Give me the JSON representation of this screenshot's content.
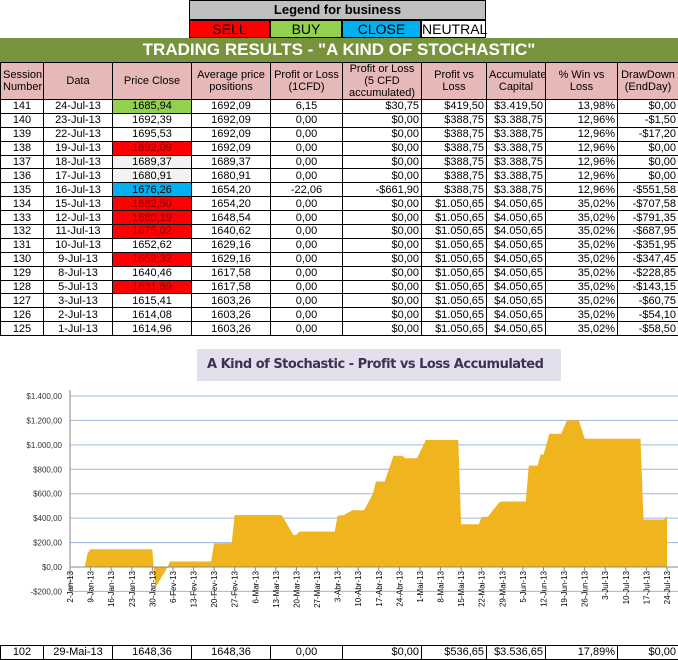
{
  "legend": {
    "title": "Legend for business",
    "items": [
      {
        "label": "SELL",
        "color": "#ff0000"
      },
      {
        "label": "BUY",
        "color": "#92d050"
      },
      {
        "label": "CLOSE",
        "color": "#00b0f0"
      },
      {
        "label": "NEUTRAL",
        "color": "#ffffff"
      }
    ]
  },
  "title": "TRADING RESULTS - \"A KIND OF STOCHASTIC\"",
  "table": {
    "headers": [
      "Session Number",
      "Data",
      "Price Close",
      "Average price positions",
      "Profit or Loss (1CFD)",
      "Profit or Loss (5 CFD accumulated)",
      "Profit vs Loss",
      "Accumulated Capital",
      "% Win vs Loss",
      "DrawDown (EndDay)"
    ],
    "rows": [
      {
        "cells": [
          "141",
          "24-Jul-13",
          "1685,94",
          "1692,09",
          "6,15",
          "$30,75",
          "$419,50",
          "$3.419,50",
          "13,98%",
          "$0,00"
        ],
        "signal": "BUY"
      },
      {
        "cells": [
          "140",
          "23-Jul-13",
          "1692,39",
          "1692,09",
          "0,00",
          "$0,00",
          "$388,75",
          "$3.388,75",
          "12,96%",
          "-$1,50"
        ],
        "signal": ""
      },
      {
        "cells": [
          "139",
          "22-Jul-13",
          "1695,53",
          "1692,09",
          "0,00",
          "$0,00",
          "$388,75",
          "$3.388,75",
          "12,96%",
          "-$17,20"
        ],
        "signal": ""
      },
      {
        "cells": [
          "138",
          "19-Jul-13",
          "1692,09",
          "1692,09",
          "0,00",
          "$0,00",
          "$388,75",
          "$3.388,75",
          "12,96%",
          "$0,00"
        ],
        "signal": "SELL"
      },
      {
        "cells": [
          "137",
          "18-Jul-13",
          "1689,37",
          "1689,37",
          "0,00",
          "$0,00",
          "$388,75",
          "$3.388,75",
          "12,96%",
          "$0,00"
        ],
        "signal": "NEUTRAL"
      },
      {
        "cells": [
          "136",
          "17-Jul-13",
          "1680,91",
          "1680,91",
          "0,00",
          "$0,00",
          "$388,75",
          "$3.388,75",
          "12,96%",
          "$0,00"
        ],
        "signal": "NEUTRAL"
      },
      {
        "cells": [
          "135",
          "16-Jul-13",
          "1676,26",
          "1654,20",
          "-22,06",
          "-$661,90",
          "$388,75",
          "$3.388,75",
          "12,96%",
          "-$551,58"
        ],
        "signal": "CLOSE"
      },
      {
        "cells": [
          "134",
          "15-Jul-13",
          "1682,50",
          "1654,20",
          "0,00",
          "$0,00",
          "$1.050,65",
          "$4.050,65",
          "35,02%",
          "-$707,58"
        ],
        "signal": "SELL"
      },
      {
        "cells": [
          "133",
          "12-Jul-13",
          "1680,19",
          "1648,54",
          "0,00",
          "$0,00",
          "$1.050,65",
          "$4.050,65",
          "35,02%",
          "-$791,35"
        ],
        "signal": "SELL"
      },
      {
        "cells": [
          "132",
          "11-Jul-13",
          "1675,02",
          "1640,62",
          "0,00",
          "$0,00",
          "$1.050,65",
          "$4.050,65",
          "35,02%",
          "-$687,95"
        ],
        "signal": "SELL"
      },
      {
        "cells": [
          "131",
          "10-Jul-13",
          "1652,62",
          "1629,16",
          "0,00",
          "$0,00",
          "$1.050,65",
          "$4.050,65",
          "35,02%",
          "-$351,95"
        ],
        "signal": ""
      },
      {
        "cells": [
          "130",
          "9-Jul-13",
          "1652,32",
          "1629,16",
          "0,00",
          "$0,00",
          "$1.050,65",
          "$4.050,65",
          "35,02%",
          "-$347,45"
        ],
        "signal": "SELL"
      },
      {
        "cells": [
          "129",
          "8-Jul-13",
          "1640,46",
          "1617,58",
          "0,00",
          "$0,00",
          "$1.050,65",
          "$4.050,65",
          "35,02%",
          "-$228,85"
        ],
        "signal": ""
      },
      {
        "cells": [
          "128",
          "5-Jul-13",
          "1631,89",
          "1617,58",
          "0,00",
          "$0,00",
          "$1.050,65",
          "$4.050,65",
          "35,02%",
          "-$143,15"
        ],
        "signal": "SELL"
      },
      {
        "cells": [
          "127",
          "3-Jul-13",
          "1615,41",
          "1603,26",
          "0,00",
          "$0,00",
          "$1.050,65",
          "$4.050,65",
          "35,02%",
          "-$60,75"
        ],
        "signal": ""
      },
      {
        "cells": [
          "126",
          "2-Jul-13",
          "1614,08",
          "1603,26",
          "0,00",
          "$0,00",
          "$1.050,65",
          "$4.050,65",
          "35,02%",
          "-$54,10"
        ],
        "signal": ""
      },
      {
        "cells": [
          "125",
          "1-Jul-13",
          "1614,96",
          "1603,26",
          "0,00",
          "$0,00",
          "$1.050,65",
          "$4.050,65",
          "35,02%",
          "-$58,50"
        ],
        "signal": ""
      }
    ],
    "bottom_row": {
      "cells": [
        "102",
        "29-Mai-13",
        "1648,36",
        "1648,36",
        "0,00",
        "$0,00",
        "$536,65",
        "$3.536,65",
        "17,89%",
        "$0,00"
      ]
    }
  },
  "chart_data": {
    "type": "area",
    "title": "A Kind of Stochastic - Profit vs Loss Accumulated",
    "color": "#f0b41e",
    "ylim": [
      -200,
      1400
    ],
    "yticks": [
      -200,
      0,
      200,
      400,
      600,
      800,
      1000,
      1200,
      1400
    ],
    "ytick_labels": [
      "-$200,00",
      "$0,00",
      "$200,00",
      "$400,00",
      "$600,00",
      "$800,00",
      "$1.000,00",
      "$1.200,00",
      "$1.400,00"
    ],
    "xlim": [
      "2013-01-02",
      "2013-07-24"
    ],
    "xtick_labels": [
      "2-Jan-13",
      "9-Jan-13",
      "16-Jan-13",
      "23-Jan-13",
      "30-Jan-13",
      "6-Fev-13",
      "13-Fev-13",
      "20-Fev-13",
      "27-Fev-13",
      "6-Mar-13",
      "13-Mar-13",
      "20-Mar-13",
      "27-Mar-13",
      "3-Abr-13",
      "10-Abr-13",
      "17-Abr-13",
      "24-Abr-13",
      "1-Mai-13",
      "8-Mai-13",
      "15-Mai-13",
      "22-Mai-13",
      "29-Mai-13",
      "5-Jun-13",
      "12-Jun-13",
      "19-Jun-13",
      "26-Jun-13",
      "3-Jul-13",
      "10-Jul-13",
      "17-Jul-13",
      "24-Jul-13"
    ],
    "grid": true,
    "points": [
      [
        "2013-01-07",
        0
      ],
      [
        "2013-01-08",
        115
      ],
      [
        "2013-01-09",
        145
      ],
      [
        "2013-01-30",
        145
      ],
      [
        "2013-01-31",
        -170
      ],
      [
        "2013-02-04",
        -10
      ],
      [
        "2013-02-05",
        45
      ],
      [
        "2013-02-19",
        45
      ],
      [
        "2013-02-20",
        195
      ],
      [
        "2013-02-26",
        195
      ],
      [
        "2013-02-27",
        425
      ],
      [
        "2013-03-15",
        425
      ],
      [
        "2013-03-19",
        260
      ],
      [
        "2013-03-20",
        265
      ],
      [
        "2013-03-21",
        290
      ],
      [
        "2013-04-02",
        290
      ],
      [
        "2013-04-03",
        420
      ],
      [
        "2013-04-05",
        425
      ],
      [
        "2013-04-08",
        465
      ],
      [
        "2013-04-12",
        465
      ],
      [
        "2013-04-15",
        600
      ],
      [
        "2013-04-16",
        700
      ],
      [
        "2013-04-19",
        700
      ],
      [
        "2013-04-22",
        910
      ],
      [
        "2013-04-25",
        910
      ],
      [
        "2013-04-26",
        890
      ],
      [
        "2013-04-30",
        890
      ],
      [
        "2013-05-03",
        1040
      ],
      [
        "2013-05-14",
        1040
      ],
      [
        "2013-05-15",
        350
      ],
      [
        "2013-05-21",
        350
      ],
      [
        "2013-05-22",
        410
      ],
      [
        "2013-05-24",
        410
      ],
      [
        "2013-05-28",
        530
      ],
      [
        "2013-05-29",
        536.65
      ],
      [
        "2013-06-06",
        536.65
      ],
      [
        "2013-06-07",
        830
      ],
      [
        "2013-06-10",
        830
      ],
      [
        "2013-06-11",
        920
      ],
      [
        "2013-06-12",
        920
      ],
      [
        "2013-06-14",
        1090
      ],
      [
        "2013-06-18",
        1090
      ],
      [
        "2013-06-20",
        1200
      ],
      [
        "2013-06-24",
        1200
      ],
      [
        "2013-06-26",
        1050.65
      ],
      [
        "2013-07-15",
        1050.65
      ],
      [
        "2013-07-16",
        388.75
      ],
      [
        "2013-07-23",
        388.75
      ],
      [
        "2013-07-24",
        419.5
      ]
    ]
  }
}
